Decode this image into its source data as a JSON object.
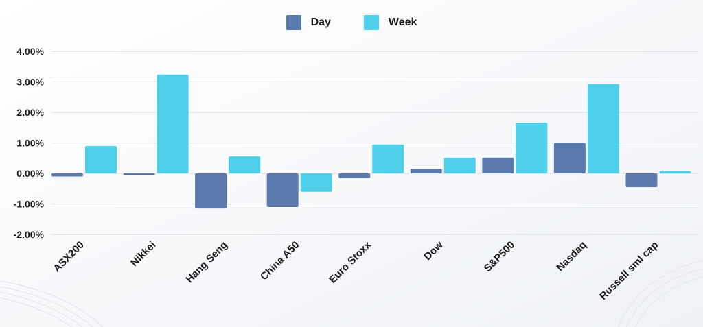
{
  "chart_data": {
    "type": "bar",
    "categories": [
      "ASX200",
      "Nikkei",
      "Hang Seng",
      "China A50",
      "Euro Stoxx",
      "Dow",
      "S&P500",
      "Nasdaq",
      "Russell sml cap"
    ],
    "series": [
      {
        "name": "Day",
        "color": "#5a79ad",
        "values": [
          -0.1,
          -0.05,
          -1.15,
          -1.1,
          -0.15,
          0.15,
          0.52,
          1.0,
          -0.45
        ]
      },
      {
        "name": "Week",
        "color": "#4fd0ea",
        "values": [
          0.9,
          3.24,
          0.56,
          -0.6,
          0.95,
          0.52,
          1.66,
          2.93,
          0.08
        ]
      }
    ],
    "yticks": [
      "4.00%",
      "3.00%",
      "2.00%",
      "1.00%",
      "0.00%",
      "-1.00%",
      "-2.00%"
    ],
    "ylim": [
      -2,
      4
    ],
    "grid": true,
    "legend_position": "top-center"
  }
}
